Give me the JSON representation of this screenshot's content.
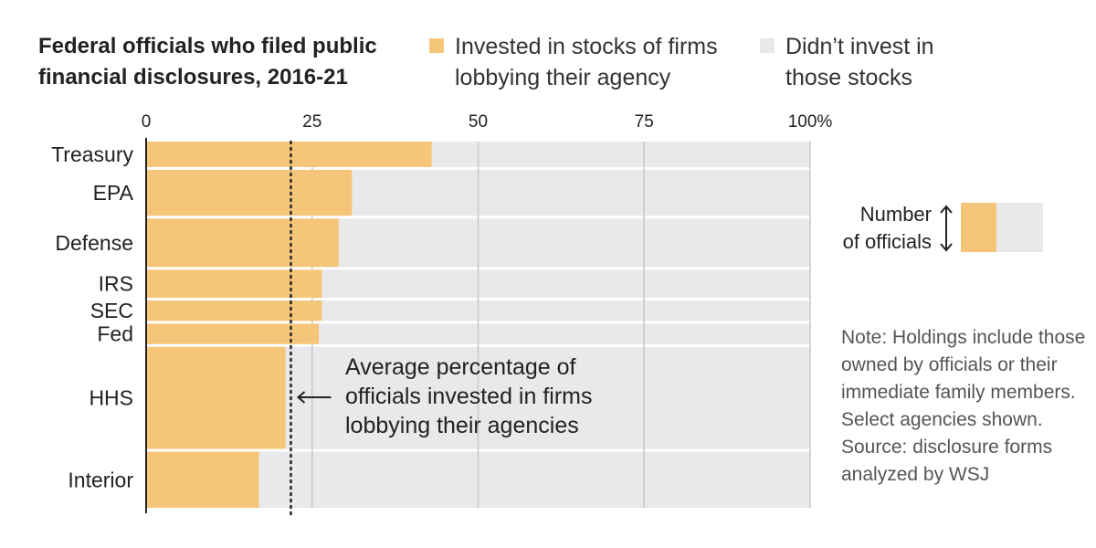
{
  "title": "Federal officials who filed public financial disclosures, 2016-21",
  "legend": {
    "invested": {
      "label": "Invested in stocks of firms lobbying their agency",
      "color": "#f5c67a"
    },
    "not_invested": {
      "label": "Didn’t invest in those stocks",
      "color": "#e9e9eb"
    }
  },
  "size_key": {
    "label_line1": "Number",
    "label_line2": "of officials",
    "icon": "double-arrow-vertical-icon"
  },
  "note": "Note: Holdings include those owned by officials or their immediate family members. Select agencies shown. Source: disclosure forms analyzed by WSJ",
  "annotation": "Average percentage of officials invested in firms lobbying their agencies",
  "chart_data": {
    "type": "bar",
    "orientation": "horizontal",
    "variable_width": true,
    "xlim": [
      0,
      100
    ],
    "x_ticks": [
      0,
      25,
      50,
      75,
      100
    ],
    "x_tick_labels": [
      "0",
      "25",
      "50",
      "75",
      "100%"
    ],
    "grid": true,
    "average_line": 21.8,
    "categories": [
      "Treasury",
      "EPA",
      "Defense",
      "IRS",
      "SEC",
      "Fed",
      "HHS",
      "Interior"
    ],
    "relative_officials": [
      1,
      1.8,
      1.9,
      1.1,
      0.8,
      0.8,
      4.0,
      2.2
    ],
    "series": [
      {
        "name": "Invested in stocks of firms lobbying their agency",
        "values": [
          43,
          31,
          29,
          26.5,
          26.5,
          26,
          21,
          17
        ]
      },
      {
        "name": "Didn’t invest in those stocks",
        "values": [
          57,
          69,
          71,
          73.5,
          73.5,
          74,
          79,
          83
        ]
      }
    ]
  }
}
